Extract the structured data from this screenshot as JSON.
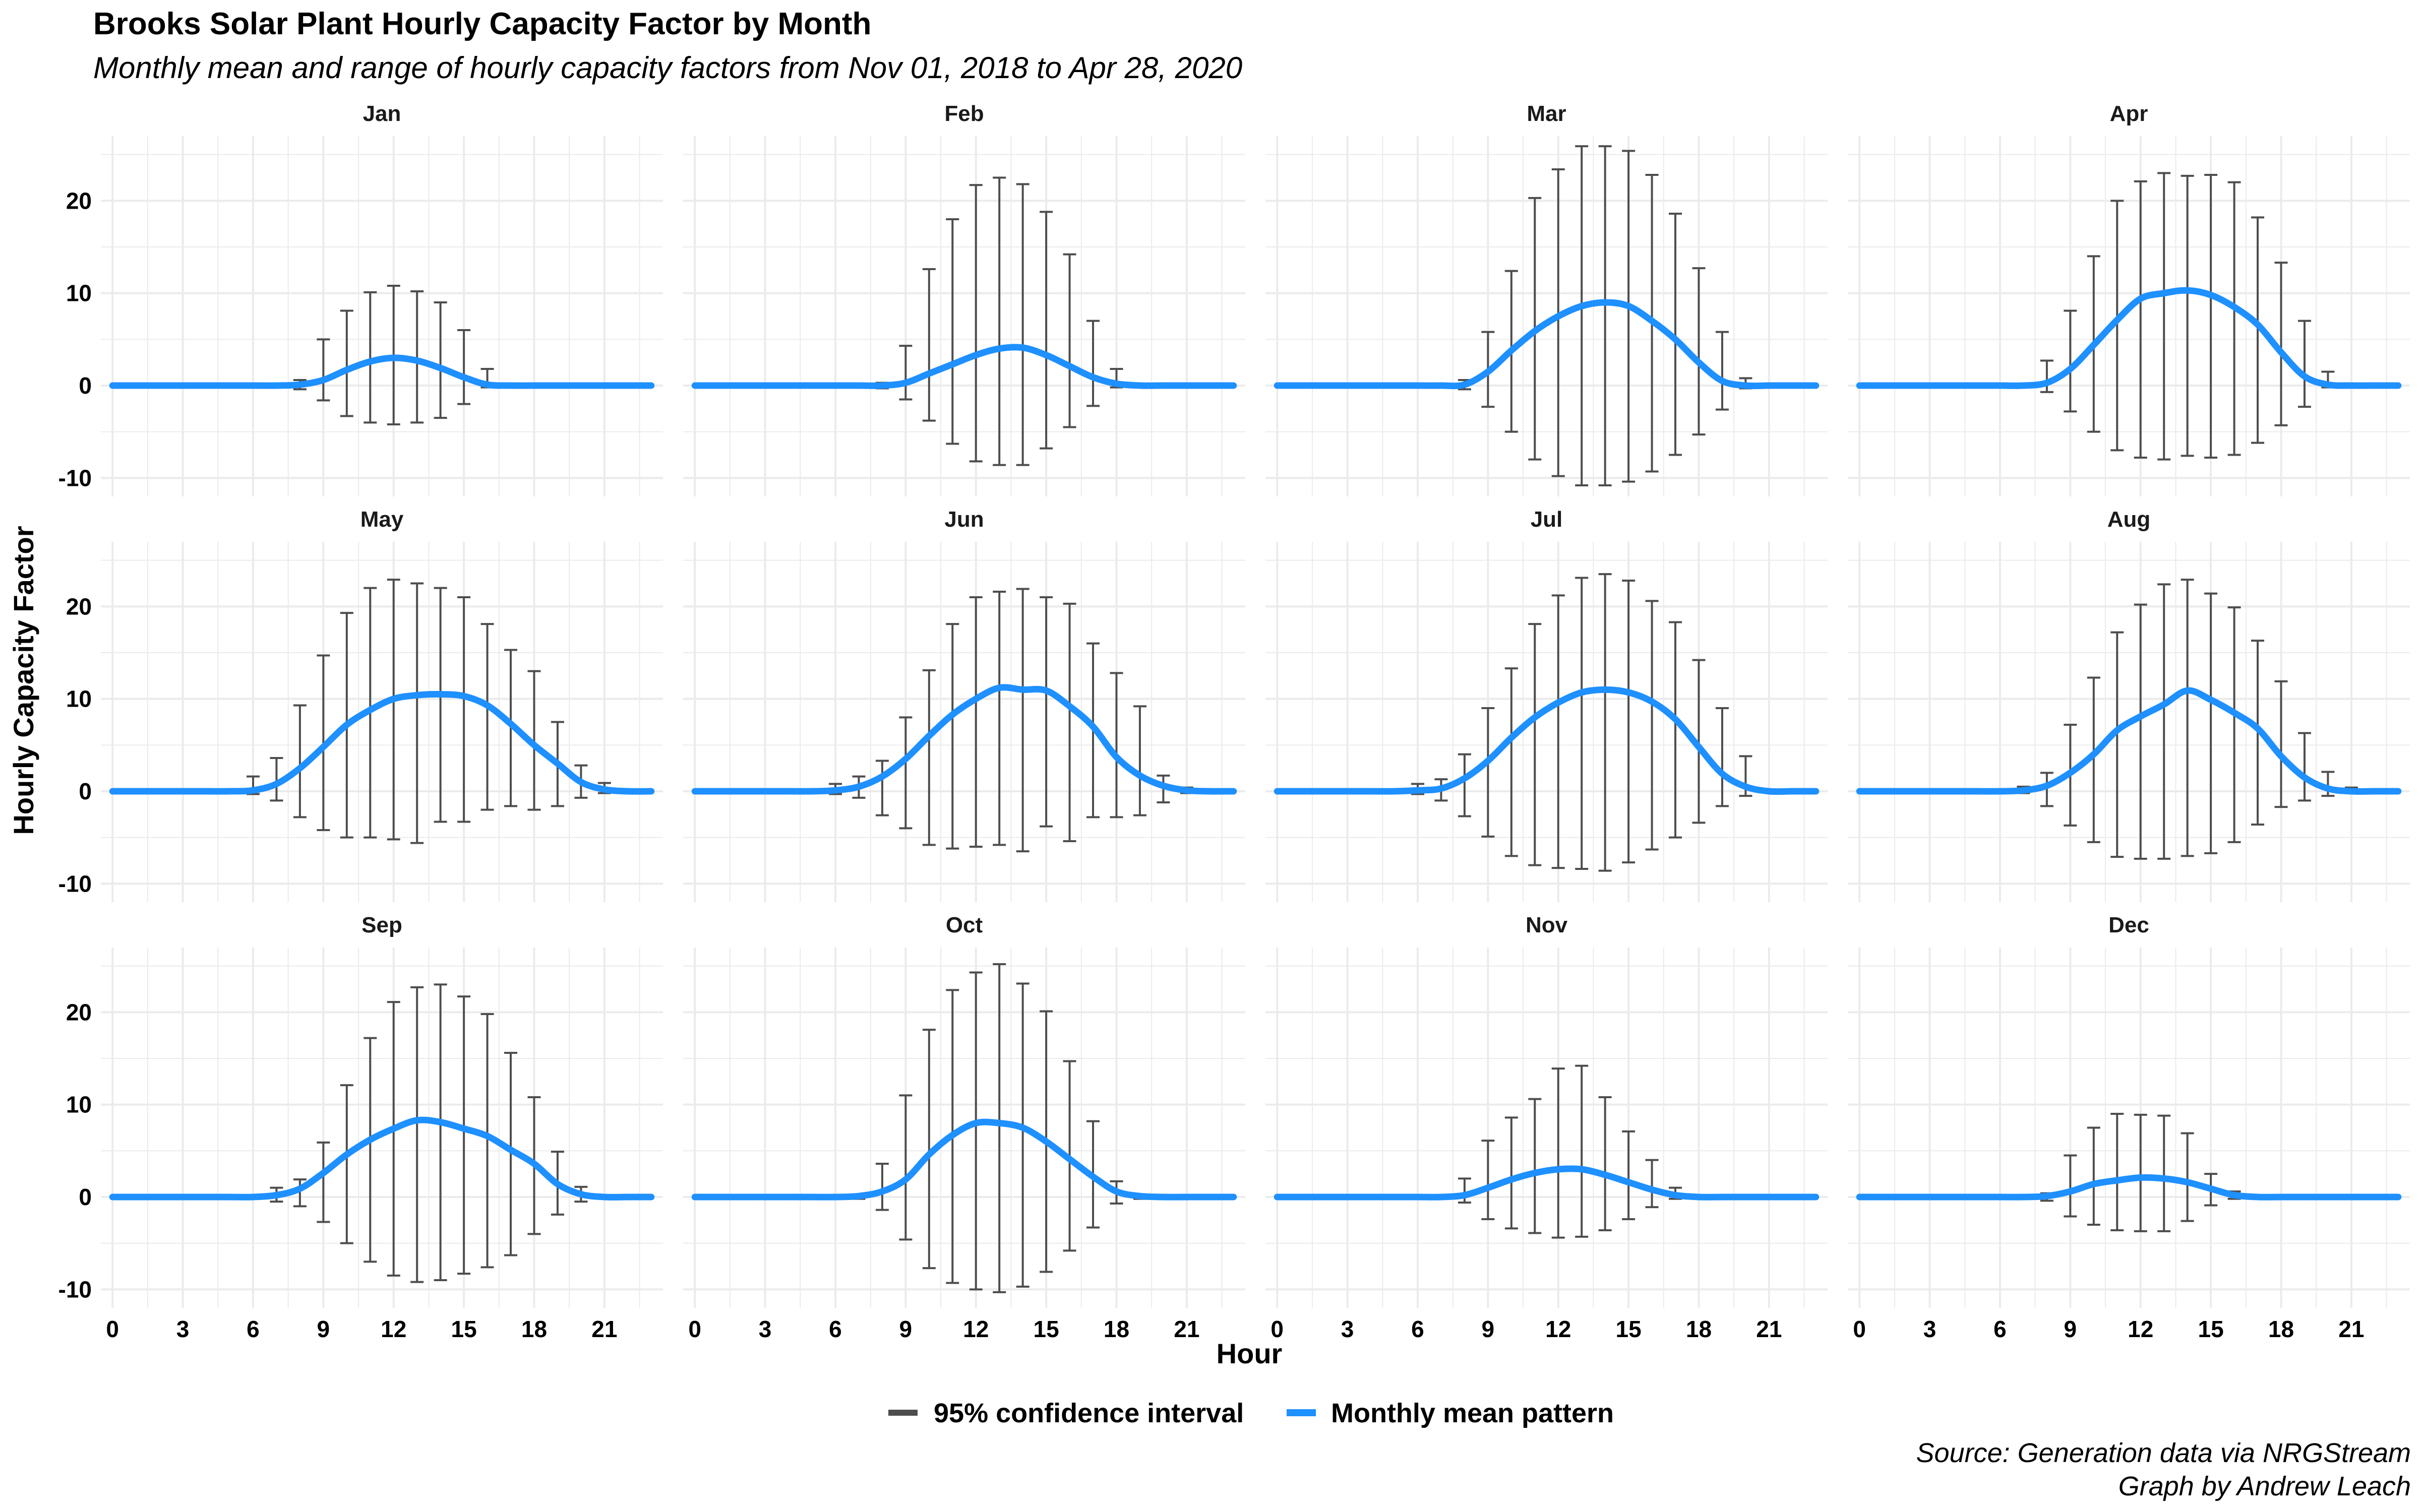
{
  "header": {
    "title": "Brooks Solar Plant Hourly Capacity Factor by Month",
    "subtitle": "Monthly mean and range of hourly capacity factors from Nov 01, 2018 to Apr 28, 2020"
  },
  "caption": {
    "line1": "Source: Generation data via NRGStream",
    "line2": "Graph by Andrew Leach"
  },
  "colors": {
    "mean_line": "#1E90FF",
    "error_bar": "#4D4D4D",
    "grid": "#EBEBEB"
  },
  "chart_data": {
    "type": "line",
    "facet": "month",
    "xlabel": "Hour",
    "ylabel": "Hourly Capacity Factor",
    "x_ticks": [
      0,
      3,
      6,
      9,
      12,
      15,
      18,
      21
    ],
    "y_ticks": [
      -10,
      0,
      10,
      20
    ],
    "xlim": [
      -0.5,
      23.5
    ],
    "ylim": [
      -12,
      27
    ],
    "grid": true,
    "legend_position": "bottom",
    "legend": [
      {
        "label": "95% confidence interval",
        "type": "errorbar"
      },
      {
        "label": "Monthly mean pattern",
        "type": "line"
      }
    ],
    "hours": [
      0,
      1,
      2,
      3,
      4,
      5,
      6,
      7,
      8,
      9,
      10,
      11,
      12,
      13,
      14,
      15,
      16,
      17,
      18,
      19,
      20,
      21,
      22,
      23
    ],
    "panels": [
      {
        "month": "Jan",
        "mean": [
          0,
          0,
          0,
          0,
          0,
          0,
          0,
          0,
          0.1,
          0.6,
          1.7,
          2.6,
          3.0,
          2.7,
          1.9,
          0.9,
          0.1,
          0,
          0,
          0,
          0,
          0,
          0,
          0
        ],
        "upper": [
          null,
          null,
          null,
          null,
          null,
          null,
          null,
          null,
          0.6,
          5.0,
          8.1,
          10.1,
          10.8,
          10.2,
          9.0,
          6.0,
          1.8,
          null,
          null,
          null,
          null,
          null,
          null,
          null
        ],
        "lower": [
          null,
          null,
          null,
          null,
          null,
          null,
          null,
          null,
          -0.4,
          -1.6,
          -3.3,
          -4.0,
          -4.2,
          -4.0,
          -3.5,
          -2.0,
          -0.2,
          null,
          null,
          null,
          null,
          null,
          null,
          null
        ]
      },
      {
        "month": "Feb",
        "mean": [
          0,
          0,
          0,
          0,
          0,
          0,
          0,
          0,
          0,
          0.3,
          1.3,
          2.3,
          3.3,
          4.0,
          4.1,
          3.3,
          2.1,
          0.9,
          0.2,
          0,
          0,
          0,
          0,
          0
        ],
        "upper": [
          null,
          null,
          null,
          null,
          null,
          null,
          null,
          null,
          0.3,
          4.3,
          12.6,
          18.0,
          21.7,
          22.5,
          21.8,
          18.8,
          14.2,
          7.0,
          1.8,
          null,
          null,
          null,
          null,
          null
        ],
        "lower": [
          null,
          null,
          null,
          null,
          null,
          null,
          null,
          null,
          -0.3,
          -1.5,
          -3.8,
          -6.3,
          -8.2,
          -8.6,
          -8.6,
          -6.8,
          -4.5,
          -2.2,
          -0.2,
          null,
          null,
          null,
          null,
          null
        ]
      },
      {
        "month": "Mar",
        "mean": [
          0,
          0,
          0,
          0,
          0,
          0,
          0,
          0,
          0.1,
          1.5,
          3.8,
          5.9,
          7.5,
          8.6,
          9.0,
          8.6,
          7.0,
          5.0,
          2.5,
          0.5,
          0,
          0,
          0,
          0
        ],
        "upper": [
          null,
          null,
          null,
          null,
          null,
          null,
          null,
          null,
          0.6,
          5.8,
          12.4,
          20.3,
          23.4,
          25.9,
          25.9,
          25.4,
          22.8,
          18.6,
          12.7,
          5.8,
          0.8,
          null,
          null,
          null
        ],
        "lower": [
          null,
          null,
          null,
          null,
          null,
          null,
          null,
          null,
          -0.4,
          -2.3,
          -5.0,
          -8.0,
          -9.8,
          -10.8,
          -10.8,
          -10.4,
          -9.3,
          -7.5,
          -5.3,
          -2.6,
          -0.3,
          null,
          null,
          null
        ]
      },
      {
        "month": "Apr",
        "mean": [
          0,
          0,
          0,
          0,
          0,
          0,
          0,
          0,
          0.3,
          1.8,
          4.4,
          7.1,
          9.4,
          10.0,
          10.3,
          9.8,
          8.5,
          6.6,
          3.6,
          1.0,
          0.1,
          0,
          0,
          0
        ],
        "upper": [
          null,
          null,
          null,
          null,
          null,
          null,
          null,
          null,
          2.7,
          8.1,
          14.0,
          20.0,
          22.1,
          23.0,
          22.7,
          22.8,
          22.0,
          18.2,
          13.3,
          7.0,
          1.5,
          null,
          null,
          null
        ],
        "lower": [
          null,
          null,
          null,
          null,
          null,
          null,
          null,
          null,
          -0.7,
          -2.8,
          -5.0,
          -7.0,
          -7.8,
          -8.0,
          -7.6,
          -7.8,
          -7.5,
          -6.2,
          -4.3,
          -2.3,
          -0.2,
          null,
          null,
          null
        ]
      },
      {
        "month": "May",
        "mean": [
          0,
          0,
          0,
          0,
          0,
          0,
          0.1,
          0.8,
          2.5,
          4.8,
          7.2,
          8.8,
          10.0,
          10.4,
          10.5,
          10.3,
          9.3,
          7.3,
          5.0,
          3.0,
          1.0,
          0.2,
          0,
          0
        ],
        "upper": [
          null,
          null,
          null,
          null,
          null,
          null,
          1.6,
          3.6,
          9.3,
          14.7,
          19.3,
          22.0,
          22.9,
          22.5,
          22.0,
          21.0,
          18.1,
          15.3,
          13.0,
          7.5,
          2.8,
          0.9,
          null,
          null
        ],
        "lower": [
          null,
          null,
          null,
          null,
          null,
          null,
          -0.3,
          -1.0,
          -2.8,
          -4.2,
          -5.0,
          -5.0,
          -5.2,
          -5.6,
          -3.3,
          -3.3,
          -2.0,
          -1.6,
          -2.0,
          -1.6,
          -0.7,
          -0.2,
          null,
          null
        ]
      },
      {
        "month": "Jun",
        "mean": [
          0,
          0,
          0,
          0,
          0,
          0,
          0.1,
          0.5,
          1.6,
          3.5,
          6.0,
          8.3,
          10.0,
          11.2,
          11.0,
          10.9,
          9.2,
          7.0,
          3.7,
          1.7,
          0.6,
          0.1,
          0,
          0
        ],
        "upper": [
          null,
          null,
          null,
          null,
          null,
          null,
          0.8,
          1.6,
          3.3,
          8.0,
          13.1,
          18.1,
          21.0,
          21.6,
          21.9,
          21.0,
          20.3,
          16.0,
          12.8,
          9.2,
          1.7,
          0.4,
          null,
          null
        ],
        "lower": [
          null,
          null,
          null,
          null,
          null,
          null,
          -0.3,
          -0.7,
          -2.6,
          -4.0,
          -5.8,
          -6.2,
          -6.0,
          -5.8,
          -6.5,
          -3.8,
          -5.4,
          -2.8,
          -2.8,
          -2.6,
          -1.2,
          -0.2,
          null,
          null
        ]
      },
      {
        "month": "Jul",
        "mean": [
          0,
          0,
          0,
          0,
          0,
          0,
          0.1,
          0.3,
          1.4,
          3.3,
          5.8,
          8.0,
          9.6,
          10.7,
          11.0,
          10.7,
          9.7,
          7.8,
          4.8,
          1.9,
          0.5,
          0,
          0,
          0
        ],
        "upper": [
          null,
          null,
          null,
          null,
          null,
          null,
          0.8,
          1.3,
          4.0,
          9.0,
          13.3,
          18.1,
          21.2,
          23.1,
          23.5,
          22.8,
          20.6,
          18.3,
          14.2,
          9.0,
          3.8,
          1.1,
          null,
          null
        ],
        "lower": [
          null,
          null,
          null,
          null,
          null,
          null,
          -0.3,
          -1.0,
          -2.7,
          -4.9,
          -7.0,
          -8.0,
          -8.3,
          -8.4,
          -8.6,
          -7.7,
          -6.3,
          -5.0,
          -3.4,
          -1.6,
          -0.5,
          null,
          null,
          null
        ]
      },
      {
        "month": "Aug",
        "mean": [
          0,
          0,
          0,
          0,
          0,
          0,
          0,
          0.1,
          0.6,
          2.0,
          4.0,
          6.6,
          8.1,
          9.4,
          10.9,
          9.9,
          8.5,
          6.8,
          3.8,
          1.5,
          0.3,
          0,
          0,
          0
        ],
        "upper": [
          null,
          null,
          null,
          null,
          null,
          null,
          null,
          0.5,
          2.0,
          7.2,
          12.3,
          17.2,
          20.2,
          22.4,
          22.9,
          21.4,
          19.9,
          16.3,
          11.9,
          6.3,
          2.1,
          0.4,
          null,
          null
        ],
        "lower": [
          null,
          null,
          null,
          null,
          null,
          null,
          null,
          -0.2,
          -1.6,
          -3.7,
          -5.5,
          -7.1,
          -7.3,
          -7.3,
          -7.0,
          -6.7,
          -5.5,
          -3.6,
          -1.7,
          -1.0,
          -0.5,
          -0.1,
          null,
          null
        ]
      },
      {
        "month": "Sep",
        "mean": [
          0,
          0,
          0,
          0,
          0,
          0,
          0,
          0.2,
          0.9,
          2.6,
          4.6,
          6.2,
          7.4,
          8.3,
          8.1,
          7.4,
          6.6,
          5.1,
          3.6,
          1.4,
          0.3,
          0,
          0,
          0
        ],
        "upper": [
          null,
          null,
          null,
          null,
          null,
          null,
          null,
          1.0,
          1.9,
          5.9,
          12.1,
          17.2,
          21.1,
          22.7,
          23.0,
          21.7,
          19.8,
          15.6,
          10.8,
          4.9,
          1.1,
          null,
          null,
          null
        ],
        "lower": [
          null,
          null,
          null,
          null,
          null,
          null,
          null,
          -0.5,
          -1.0,
          -2.7,
          -5.0,
          -7.0,
          -8.5,
          -9.2,
          -9.0,
          -8.3,
          -7.6,
          -6.3,
          -4.0,
          -1.9,
          -0.5,
          null,
          null,
          null
        ]
      },
      {
        "month": "Oct",
        "mean": [
          0,
          0,
          0,
          0,
          0,
          0,
          0,
          0.1,
          0.6,
          1.9,
          4.6,
          6.7,
          8.0,
          8.0,
          7.5,
          6.0,
          4.1,
          2.2,
          0.6,
          0.1,
          0,
          0,
          0,
          0
        ],
        "upper": [
          null,
          null,
          null,
          null,
          null,
          null,
          null,
          0.3,
          3.6,
          11.0,
          18.1,
          22.4,
          24.3,
          25.2,
          23.1,
          20.1,
          14.7,
          8.2,
          1.7,
          0.3,
          null,
          null,
          null,
          null
        ],
        "lower": [
          null,
          null,
          null,
          null,
          null,
          null,
          null,
          -0.2,
          -1.4,
          -4.6,
          -7.7,
          -9.3,
          -10.0,
          -10.3,
          -9.7,
          -8.1,
          -5.8,
          -3.3,
          -0.7,
          -0.2,
          null,
          null,
          null,
          null
        ]
      },
      {
        "month": "Nov",
        "mean": [
          0,
          0,
          0,
          0,
          0,
          0,
          0,
          0,
          0.2,
          1.0,
          1.9,
          2.6,
          3.0,
          3.0,
          2.4,
          1.6,
          0.8,
          0.2,
          0,
          0,
          0,
          0,
          0,
          0
        ],
        "upper": [
          null,
          null,
          null,
          null,
          null,
          null,
          null,
          null,
          2.0,
          6.1,
          8.6,
          10.6,
          13.9,
          14.2,
          10.8,
          7.1,
          4.0,
          1.0,
          null,
          null,
          null,
          null,
          null,
          null
        ],
        "lower": [
          null,
          null,
          null,
          null,
          null,
          null,
          null,
          null,
          -0.6,
          -2.4,
          -3.4,
          -3.9,
          -4.4,
          -4.3,
          -3.6,
          -2.4,
          -1.1,
          -0.2,
          null,
          null,
          null,
          null,
          null,
          null
        ]
      },
      {
        "month": "Dec",
        "mean": [
          0,
          0,
          0,
          0,
          0,
          0,
          0,
          0,
          0.1,
          0.6,
          1.4,
          1.8,
          2.1,
          2.0,
          1.6,
          0.9,
          0.2,
          0,
          0,
          0,
          0,
          0,
          0,
          0
        ],
        "upper": [
          null,
          null,
          null,
          null,
          null,
          null,
          null,
          null,
          0.4,
          4.5,
          7.5,
          9.0,
          8.9,
          8.8,
          6.9,
          2.5,
          0.6,
          null,
          null,
          null,
          null,
          null,
          null,
          null
        ],
        "lower": [
          null,
          null,
          null,
          null,
          null,
          null,
          null,
          null,
          -0.4,
          -2.1,
          -3.0,
          -3.6,
          -3.7,
          -3.7,
          -2.6,
          -0.9,
          -0.2,
          null,
          null,
          null,
          null,
          null,
          null,
          null
        ]
      }
    ]
  }
}
